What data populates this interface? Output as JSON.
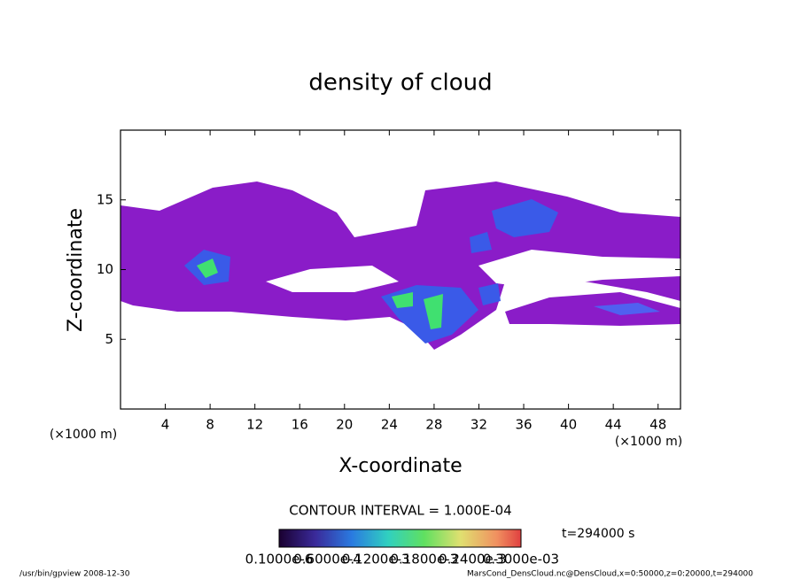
{
  "chart_data": {
    "type": "contour",
    "title": "density of cloud",
    "xlabel": "X-coordinate",
    "ylabel": "Z-coordinate",
    "xunit": "(×1000 m)",
    "yunit": "(×1000 m)",
    "xlim": [
      0,
      50
    ],
    "ylim": [
      0,
      20
    ],
    "xticks": [
      4,
      8,
      12,
      16,
      20,
      24,
      28,
      32,
      36,
      40,
      44,
      48
    ],
    "yticks": [
      5,
      10,
      15
    ],
    "contour_interval": "CONTOUR INTERVAL = 1.000E-04",
    "time": "t=294000 s",
    "colorbar_labels": [
      "0.1000e-6",
      "0.6000e-4",
      "0.1200e-3",
      "0.1800e-3",
      "0.2400e-3",
      "0.3000e-03"
    ],
    "footer_left": "/usr/bin/gpview  2008-12-30",
    "footer_right": "MarsCond_DensCloud.nc@DensCloud,x=0:50000,z=0:20000,t=294000"
  }
}
